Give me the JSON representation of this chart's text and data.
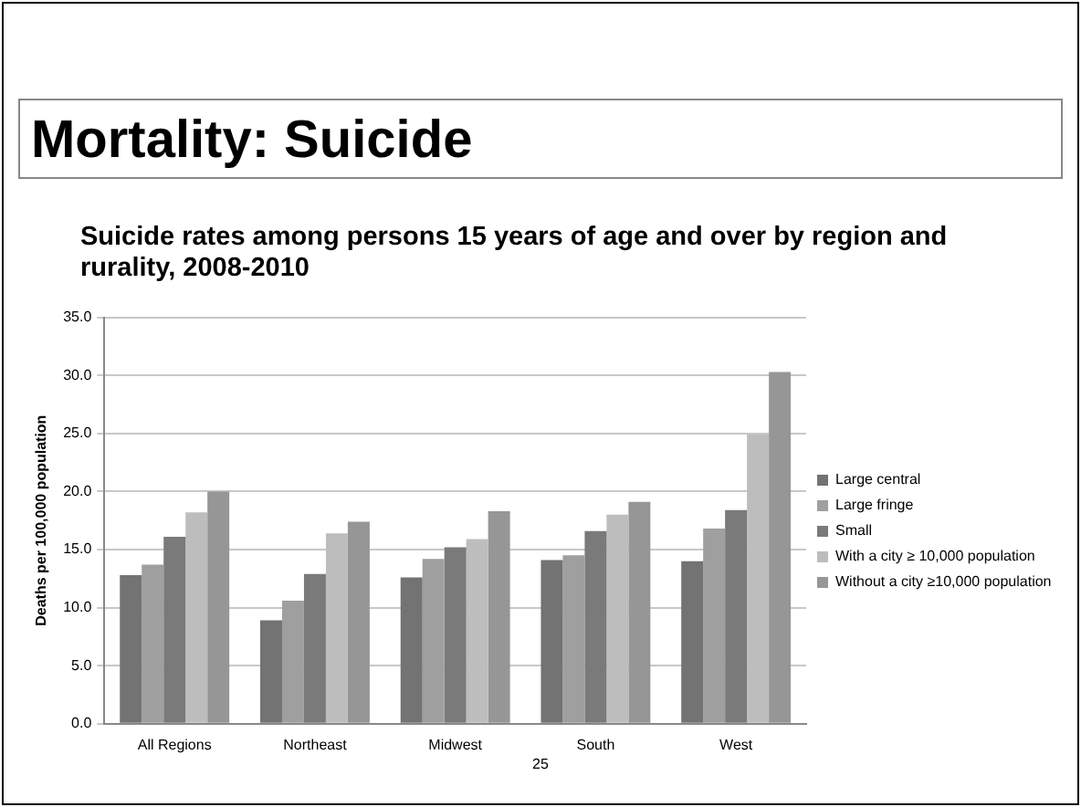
{
  "chart_data": {
    "type": "bar",
    "title": "Mortality: Suicide",
    "subtitle": "Suicide rates among persons 15 years of age and over by region and rurality, 2008-2010",
    "ylabel": "Deaths per 100,000 population",
    "categories": [
      "All Regions",
      "Northeast",
      "Midwest",
      "South",
      "West"
    ],
    "series": [
      {
        "name": "Large central",
        "color": "#737373",
        "values": [
          12.8,
          8.9,
          12.6,
          14.1,
          14.0
        ]
      },
      {
        "name": "Large fringe",
        "color": "#9f9f9f",
        "values": [
          13.7,
          10.6,
          14.2,
          14.5,
          16.8
        ]
      },
      {
        "name": "Small",
        "color": "#7a7a7a",
        "values": [
          16.1,
          12.9,
          15.2,
          16.6,
          18.4
        ]
      },
      {
        "name": "With a city ≥ 10,000 population",
        "color": "#bdbdbd",
        "values": [
          18.2,
          16.4,
          15.9,
          18.0,
          24.9
        ]
      },
      {
        "name": "Without a city ≥10,000 population",
        "color": "#969696",
        "values": [
          20.0,
          17.4,
          18.3,
          19.1,
          30.3
        ]
      }
    ],
    "ylim": [
      0,
      35
    ],
    "yticks": [
      {
        "value": 0,
        "label": "0.0"
      },
      {
        "value": 5,
        "label": "5.0"
      },
      {
        "value": 10,
        "label": "10.0"
      },
      {
        "value": 15,
        "label": "15.0"
      },
      {
        "value": 20,
        "label": "20.0"
      },
      {
        "value": 25,
        "label": "25.0"
      },
      {
        "value": 30,
        "label": "30.0"
      },
      {
        "value": 35,
        "label": "35.0"
      }
    ],
    "grid": "y",
    "legend": "right",
    "annotations": [
      "25"
    ]
  }
}
